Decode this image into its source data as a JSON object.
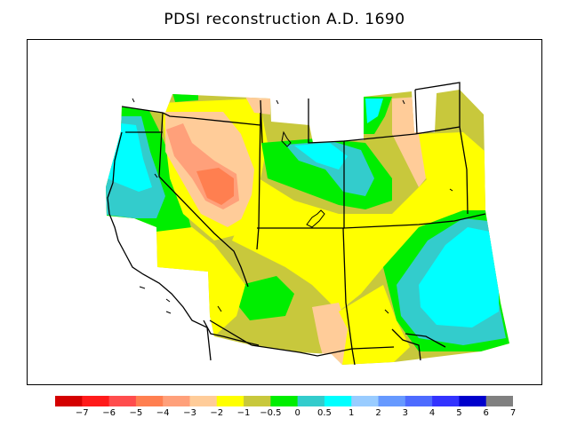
{
  "title": "PDSI reconstruction A.D. 1690",
  "legend": {
    "colors": [
      "#d40000",
      "#ff1a1a",
      "#ff4d4d",
      "#ff7f50",
      "#ffa07a",
      "#ffcc99",
      "#ffff00",
      "#c8c83c",
      "#00ee00",
      "#33cccc",
      "#00ffff",
      "#99ccff",
      "#6699ff",
      "#4d6bff",
      "#3333ff",
      "#0000cc",
      "#808080"
    ],
    "tick_labels": [
      "−7",
      "−6",
      "−5",
      "−4",
      "−3",
      "−2",
      "−1",
      "−0.5",
      "0",
      "0.5",
      "1",
      "2",
      "3",
      "4",
      "5",
      "6",
      "7"
    ]
  }
}
